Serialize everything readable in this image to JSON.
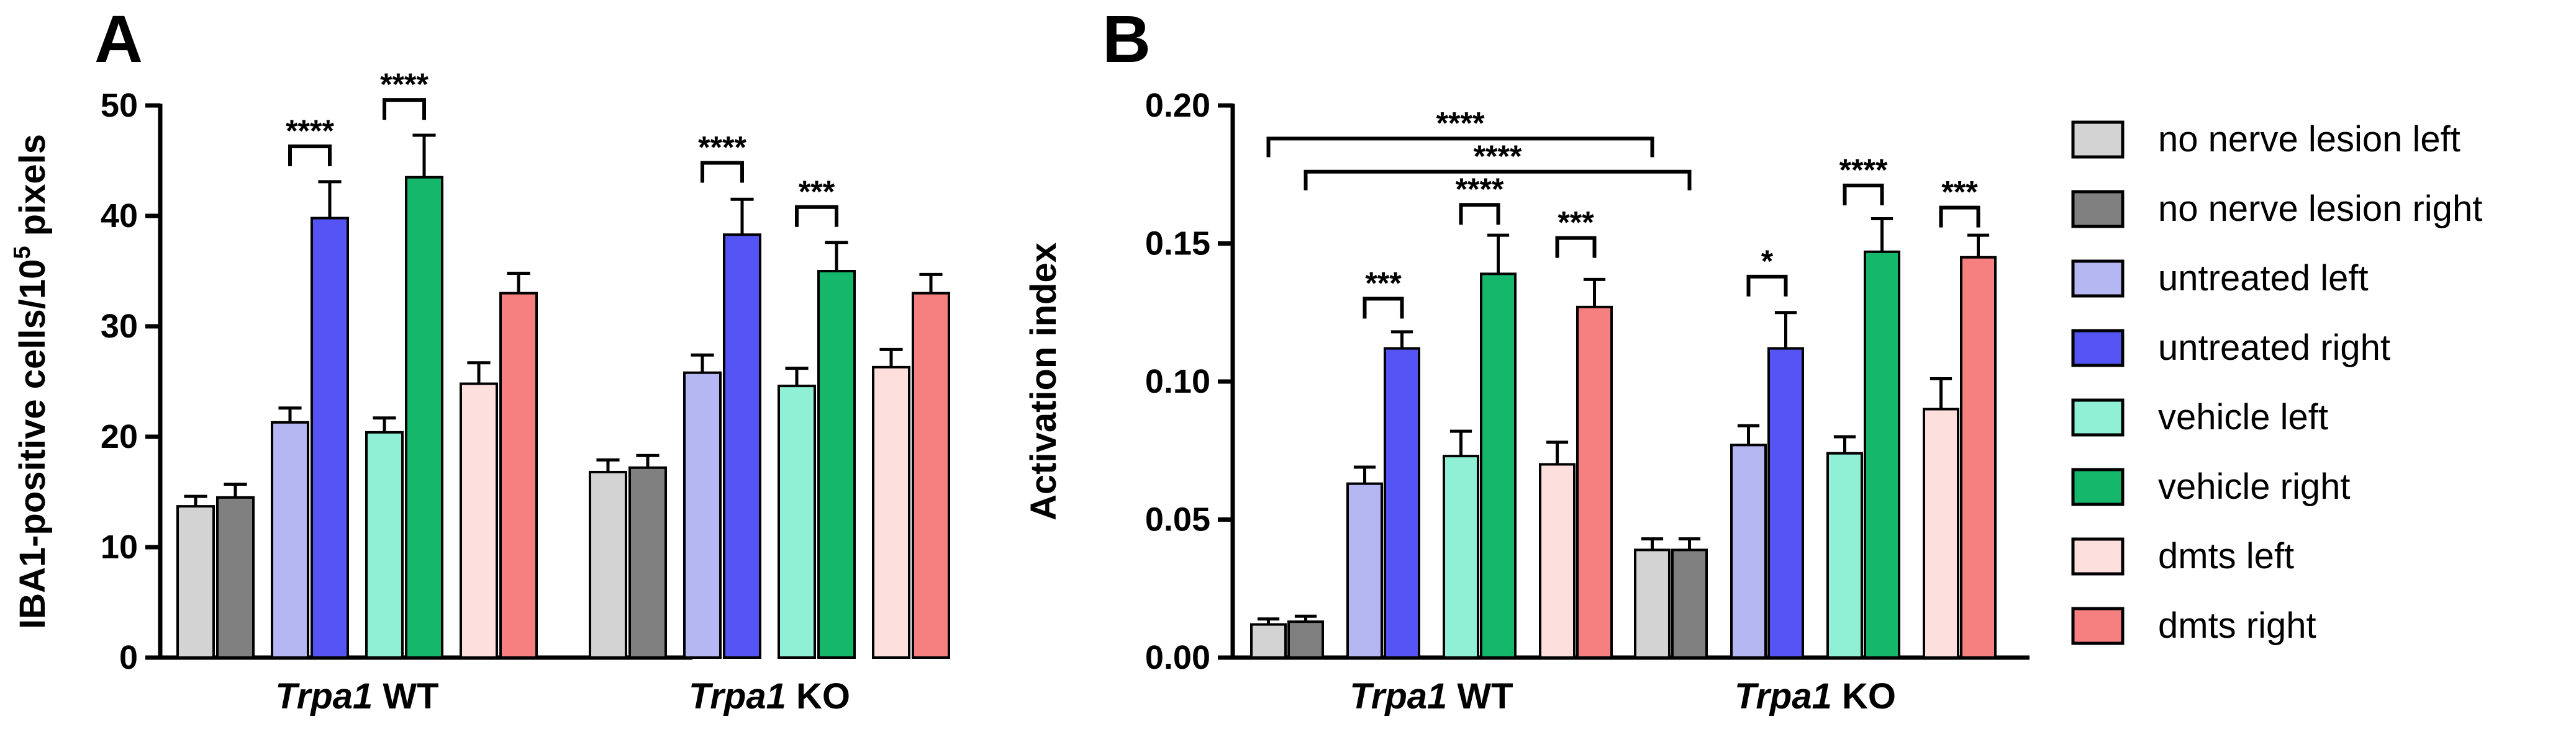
{
  "legend": [
    {
      "label": "no nerve lesion left",
      "color": "#d3d3d3"
    },
    {
      "label": "no nerve lesion right",
      "color": "#808080"
    },
    {
      "label": "untreated left",
      "color": "#b4b7f2"
    },
    {
      "label": "untreated right",
      "color": "#5555f5"
    },
    {
      "label": "vehicle left",
      "color": "#8ff0d6"
    },
    {
      "label": "vehicle right",
      "color": "#15b86a"
    },
    {
      "label": "dmts left",
      "color": "#fde0de"
    },
    {
      "label": "dmts right",
      "color": "#f67f7f"
    }
  ],
  "chart_data": [
    {
      "panel": "A",
      "type": "bar",
      "ylabel_prefix": "IBA1-positive cells/10",
      "ylabel_sup": "5",
      "ylabel_suffix": " pixels",
      "ylim": [
        0,
        50
      ],
      "yticks": [
        0,
        10,
        20,
        30,
        40,
        50
      ],
      "groups": [
        {
          "italic": "Trpa1",
          "rest": " WT",
          "values": [
            13.7,
            14.5,
            21.3,
            39.8,
            20.4,
            43.5,
            24.8,
            33.0
          ],
          "errors": [
            0.9,
            1.2,
            1.3,
            3.3,
            1.3,
            3.8,
            1.9,
            1.8
          ]
        },
        {
          "italic": "Trpa1",
          "rest": " KO",
          "values": [
            16.8,
            17.2,
            25.8,
            38.3,
            24.6,
            35.0,
            26.3,
            33.0
          ],
          "errors": [
            1.1,
            1.1,
            1.6,
            3.2,
            1.6,
            2.6,
            1.6,
            1.7
          ]
        }
      ],
      "brackets": [
        {
          "group": 0,
          "bar1": 2,
          "bar2": 3,
          "level": 46.3,
          "label": "****"
        },
        {
          "group": 0,
          "bar1": 4,
          "bar2": 5,
          "level": 50.5,
          "label": "****"
        },
        {
          "group": 1,
          "bar1": 2,
          "bar2": 3,
          "level": 44.8,
          "label": "****"
        },
        {
          "group": 1,
          "bar1": 4,
          "bar2": 5,
          "level": 40.8,
          "label": "***"
        }
      ]
    },
    {
      "panel": "B",
      "type": "bar",
      "ylabel": "Activation index",
      "ylim": [
        0,
        0.2
      ],
      "yticks": [
        "0.00",
        "0.05",
        "0.10",
        "0.15",
        "0.20"
      ],
      "groups": [
        {
          "italic": "Trpa1",
          "rest": " WT",
          "values": [
            0.012,
            0.013,
            0.063,
            0.112,
            0.073,
            0.139,
            0.07,
            0.127
          ],
          "errors": [
            0.002,
            0.002,
            0.006,
            0.006,
            0.009,
            0.014,
            0.008,
            0.01
          ]
        },
        {
          "italic": "Trpa1",
          "rest": " KO",
          "values": [
            0.039,
            0.039,
            0.077,
            0.112,
            0.074,
            0.147,
            0.09,
            0.145
          ],
          "errors": [
            0.004,
            0.004,
            0.007,
            0.013,
            0.006,
            0.012,
            0.011,
            0.008
          ]
        }
      ],
      "brackets": [
        {
          "group": 0,
          "bar1": 2,
          "bar2": 3,
          "level": 0.13,
          "label": "***"
        },
        {
          "group": 0,
          "bar1": 4,
          "bar2": 5,
          "level": 0.164,
          "label": "****"
        },
        {
          "group": 0,
          "bar1": 6,
          "bar2": 7,
          "level": 0.152,
          "label": "***"
        },
        {
          "group": 1,
          "bar1": 2,
          "bar2": 3,
          "level": 0.138,
          "label": "*"
        },
        {
          "group": 1,
          "bar1": 4,
          "bar2": 5,
          "level": 0.171,
          "label": "****"
        },
        {
          "group": 1,
          "bar1": 6,
          "bar2": 7,
          "level": 0.163,
          "label": "***"
        }
      ],
      "long_brackets": [
        {
          "from": [
            0,
            0
          ],
          "to": [
            1,
            0
          ],
          "level": 0.188,
          "label": "****"
        },
        {
          "from": [
            0,
            1
          ],
          "to": [
            1,
            1
          ],
          "level": 0.176,
          "label": "****"
        }
      ]
    }
  ]
}
